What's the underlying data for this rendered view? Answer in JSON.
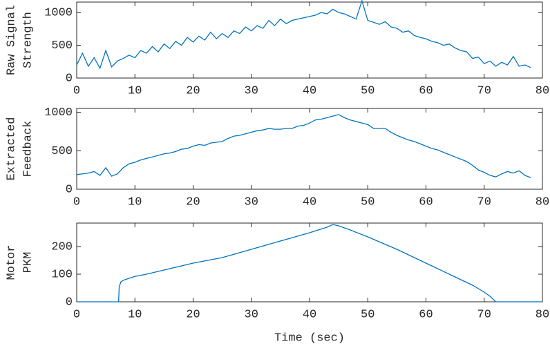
{
  "chart_data": [
    {
      "type": "line",
      "ylabel": [
        "Raw Signal",
        "Strength"
      ],
      "color": "#0072bd",
      "x": [
        0,
        1,
        2,
        3,
        4,
        5,
        6,
        7,
        8,
        9,
        10,
        11,
        12,
        13,
        14,
        15,
        16,
        17,
        18,
        19,
        20,
        21,
        22,
        23,
        24,
        25,
        26,
        27,
        28,
        29,
        30,
        31,
        32,
        33,
        34,
        35,
        36,
        37,
        38,
        39,
        40,
        41,
        42,
        43,
        44,
        45,
        46,
        47,
        48,
        49,
        50,
        51,
        52,
        53,
        54,
        55,
        56,
        57,
        58,
        59,
        60,
        61,
        62,
        63,
        64,
        65,
        66,
        67,
        68,
        69,
        70,
        71,
        72,
        73,
        74,
        75,
        76,
        77,
        78
      ],
      "values": [
        200,
        380,
        180,
        310,
        150,
        420,
        170,
        260,
        300,
        350,
        310,
        420,
        380,
        480,
        400,
        520,
        450,
        560,
        500,
        620,
        550,
        640,
        580,
        700,
        600,
        680,
        620,
        720,
        680,
        780,
        720,
        800,
        760,
        880,
        800,
        900,
        830,
        880,
        900,
        920,
        940,
        960,
        1000,
        980,
        1050,
        1000,
        980,
        940,
        900,
        1180,
        880,
        850,
        820,
        860,
        780,
        760,
        700,
        720,
        650,
        620,
        600,
        560,
        540,
        500,
        520,
        460,
        420,
        400,
        300,
        320,
        220,
        260,
        180,
        240,
        200,
        330,
        180,
        200,
        160
      ],
      "xlim": [
        0,
        80
      ],
      "xticks": [
        0,
        10,
        20,
        30,
        40,
        50,
        60,
        70,
        80
      ],
      "ylim": [
        0,
        1160
      ],
      "yticks": [
        0,
        500,
        1000
      ]
    },
    {
      "type": "line",
      "ylabel": [
        "Extracted",
        "Feedback"
      ],
      "color": "#0072bd",
      "x": [
        0,
        1,
        2,
        3,
        4,
        5,
        6,
        7,
        8,
        9,
        10,
        11,
        12,
        13,
        14,
        15,
        16,
        17,
        18,
        19,
        20,
        21,
        22,
        23,
        24,
        25,
        26,
        27,
        28,
        29,
        30,
        31,
        32,
        33,
        34,
        35,
        36,
        37,
        38,
        39,
        40,
        41,
        42,
        43,
        44,
        45,
        46,
        47,
        48,
        49,
        50,
        51,
        52,
        53,
        54,
        55,
        56,
        57,
        58,
        59,
        60,
        61,
        62,
        63,
        64,
        65,
        66,
        67,
        68,
        69,
        70,
        71,
        72,
        73,
        74,
        75,
        76,
        77,
        78
      ],
      "values": [
        190,
        200,
        210,
        230,
        180,
        280,
        170,
        200,
        280,
        330,
        350,
        380,
        400,
        420,
        440,
        460,
        470,
        490,
        520,
        530,
        560,
        580,
        570,
        600,
        610,
        620,
        660,
        690,
        700,
        720,
        740,
        760,
        770,
        790,
        780,
        780,
        790,
        790,
        820,
        830,
        860,
        900,
        910,
        930,
        950,
        970,
        930,
        900,
        880,
        860,
        840,
        790,
        790,
        790,
        740,
        700,
        670,
        640,
        620,
        590,
        560,
        530,
        510,
        480,
        450,
        420,
        390,
        360,
        310,
        250,
        220,
        180,
        160,
        200,
        230,
        210,
        240,
        180,
        150
      ],
      "xlim": [
        0,
        80
      ],
      "xticks": [
        0,
        10,
        20,
        30,
        40,
        50,
        60,
        70,
        80
      ],
      "ylim": [
        0,
        1050
      ],
      "yticks": [
        0,
        500,
        1000
      ]
    },
    {
      "type": "line",
      "ylabel": [
        "Motor",
        "PKM"
      ],
      "xlabel": "Time (sec)",
      "color": "#0072bd",
      "x": [
        0,
        7.2,
        7.3,
        7.6,
        8,
        9,
        10,
        12,
        15,
        20,
        25,
        30,
        35,
        40,
        43,
        44,
        45,
        47,
        50,
        55,
        60,
        65,
        68,
        70,
        71,
        72,
        80
      ],
      "values": [
        0,
        0,
        55,
        72,
        78,
        85,
        92,
        100,
        115,
        140,
        160,
        190,
        220,
        250,
        270,
        280,
        275,
        260,
        235,
        190,
        140,
        90,
        60,
        35,
        20,
        0,
        0
      ],
      "xlim": [
        0,
        80
      ],
      "xticks": [
        0,
        10,
        20,
        30,
        40,
        50,
        60,
        70,
        80
      ],
      "ylim": [
        0,
        285
      ],
      "yticks": [
        0,
        100,
        200
      ]
    }
  ]
}
